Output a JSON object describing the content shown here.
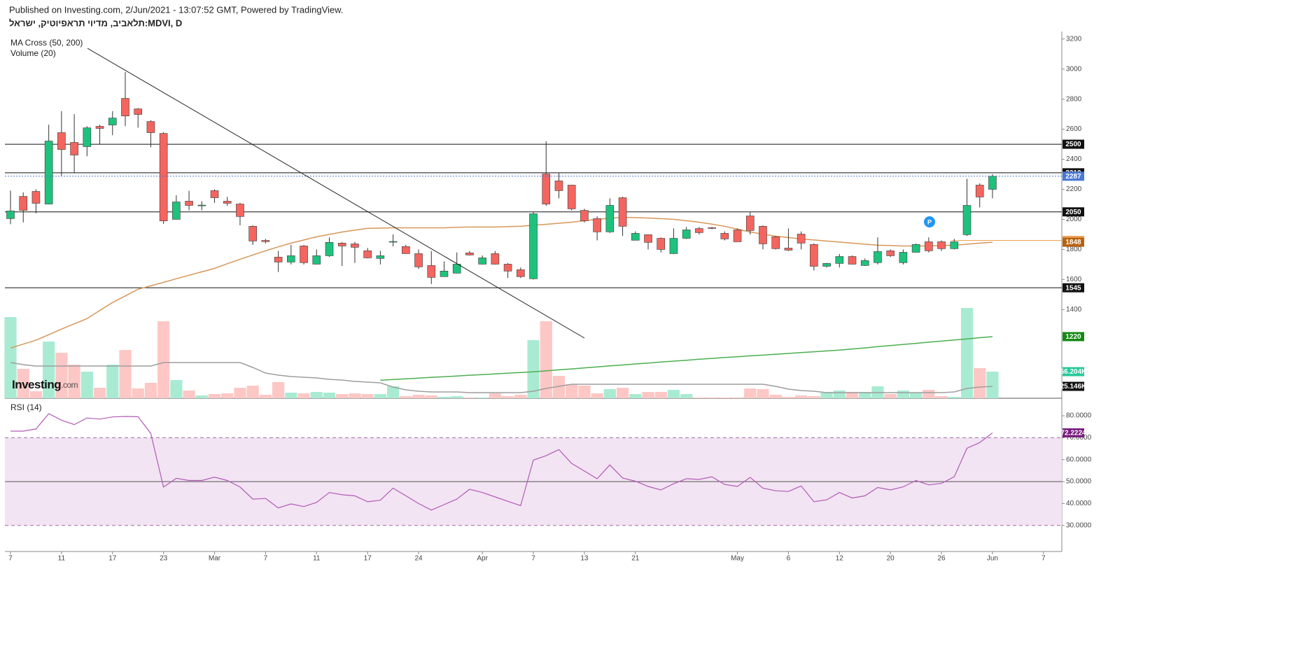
{
  "header": {
    "published": "Published on Investing.com, 2/Jun/2021 - 13:07:52 GMT, Powered by TradingView.",
    "title": "תלאביב, מדיוי תראפיוטיק, ישראל:MDVI, D"
  },
  "logo": {
    "brand": "Investing",
    "suffix": ".com"
  },
  "chart_data": {
    "type": "candlestick",
    "legend": [
      "MA Cross (50, 200)",
      "Volume (20)"
    ],
    "marker_label": "P",
    "categories": [
      "7",
      null,
      null,
      null,
      "11",
      null,
      null,
      null,
      "17",
      null,
      null,
      null,
      "23",
      null,
      null,
      null,
      "Mar",
      null,
      null,
      null,
      "7",
      null,
      null,
      null,
      "11",
      null,
      null,
      null,
      "17",
      null,
      null,
      null,
      "24",
      null,
      null,
      null,
      null,
      "Apr",
      null,
      null,
      null,
      "7",
      null,
      null,
      null,
      "13",
      null,
      null,
      null,
      "21",
      null,
      null,
      null,
      null,
      null,
      null,
      null,
      "May",
      null,
      null,
      null,
      "6",
      null,
      null,
      null,
      "12",
      null,
      null,
      null,
      "20",
      null,
      null,
      null,
      "26",
      null,
      null,
      null,
      "Jun",
      null,
      null,
      null,
      "7"
    ],
    "ohlc": {
      "open": [
        2005,
        2153,
        2186,
        2102,
        2577,
        2512,
        2484,
        2619,
        2628,
        2805,
        2735,
        2651,
        2572,
        2000,
        2121,
        2090,
        2191,
        2121,
        2102,
        1954,
        1860,
        1749,
        1716,
        1823,
        1702,
        1758,
        1842,
        1837,
        1791,
        1740,
        1851,
        1819,
        1772,
        1693,
        1619,
        1642,
        1777,
        1702,
        1772,
        1702,
        1665,
        1605,
        2302,
        2256,
        2228,
        2060,
        2005,
        1917,
        2144,
        1861,
        1898,
        1874,
        1772,
        1874,
        1939,
        1945,
        1907,
        1930,
        2023,
        1954,
        1884,
        1809,
        1902,
        1833,
        1688,
        1707,
        1753,
        1693,
        1712,
        1791,
        1712,
        1781,
        1851,
        1851,
        1805,
        1898,
        2228,
        2200,
        null,
        null,
        null
      ],
      "high": [
        2191,
        2180,
        2200,
        2630,
        2720,
        2700,
        2620,
        2630,
        2720,
        2980,
        2740,
        2660,
        2580,
        2160,
        2190,
        2120,
        2200,
        2150,
        2110,
        1960,
        1870,
        1790,
        1830,
        1830,
        1800,
        1880,
        1850,
        1850,
        1810,
        1790,
        1900,
        1830,
        1800,
        1790,
        1720,
        1780,
        1790,
        1760,
        1790,
        1710,
        1680,
        2050,
        2520,
        2310,
        2230,
        2070,
        2020,
        2140,
        2150,
        1920,
        1900,
        1880,
        1940,
        1950,
        1950,
        1950,
        1920,
        1940,
        2050,
        1960,
        1890,
        1940,
        1920,
        1840,
        1710,
        1770,
        1760,
        1740,
        1880,
        1800,
        1800,
        1840,
        1880,
        1860,
        1870,
        2270,
        2240,
        2300,
        null,
        null,
        null
      ],
      "low": [
        1968,
        1980,
        2040,
        2100,
        2290,
        2310,
        2420,
        2500,
        2560,
        2620,
        2610,
        2480,
        1970,
        2000,
        2060,
        2060,
        2110,
        2090,
        1960,
        1830,
        1840,
        1650,
        1700,
        1700,
        1700,
        1750,
        1690,
        1710,
        1740,
        1700,
        1820,
        1770,
        1670,
        1570,
        1620,
        1640,
        1760,
        1700,
        1700,
        1610,
        1610,
        1600,
        2090,
        2140,
        2060,
        1980,
        1860,
        1910,
        1890,
        1860,
        1800,
        1780,
        1770,
        1870,
        1900,
        1935,
        1860,
        1850,
        1900,
        1800,
        1800,
        1790,
        1800,
        1660,
        1680,
        1680,
        1700,
        1690,
        1700,
        1750,
        1700,
        1780,
        1780,
        1790,
        1800,
        1890,
        2080,
        2140,
        null,
        null,
        null
      ],
      "close": [
        2056,
        2060,
        2107,
        2521,
        2465,
        2428,
        2609,
        2605,
        2674,
        2688,
        2698,
        2577,
        1990,
        2116,
        2093,
        2095,
        2144,
        2107,
        2019,
        1856,
        1852,
        1716,
        1758,
        1712,
        1758,
        1847,
        1823,
        1814,
        1744,
        1758,
        1853,
        1772,
        1684,
        1614,
        1656,
        1702,
        1763,
        1744,
        1702,
        1656,
        1619,
        2037,
        2102,
        2191,
        2070,
        1991,
        1917,
        2093,
        1954,
        1907,
        1847,
        1800,
        1874,
        1930,
        1912,
        1940,
        1870,
        1851,
        1926,
        1837,
        1805,
        1795,
        1842,
        1688,
        1707,
        1753,
        1702,
        1726,
        1786,
        1758,
        1781,
        1833,
        1791,
        1805,
        1851,
        2093,
        2149,
        2287,
        null,
        null,
        null
      ]
    },
    "up_color": "#1ec27c",
    "down_color": "#f4655f",
    "last_price_color": "#4a78d6",
    "moving_averages": [
      {
        "color": "#d6975a",
        "badge_color": "#b8620e",
        "values": [
          1144,
          1170,
          1196,
          1233,
          1270,
          1305,
          1340,
          1394,
          1447,
          1491,
          1535,
          1558,
          1581,
          1605,
          1628,
          1651,
          1674,
          1705,
          1735,
          1763,
          1791,
          1817,
          1842,
          1863,
          1884,
          1900,
          1916,
          1928,
          1940,
          1942,
          1944,
          1944,
          1944,
          1944,
          1944,
          1947,
          1949,
          1949,
          1949,
          1952,
          1954,
          1961,
          1967,
          1974,
          1981,
          1991,
          2000,
          2007,
          2014,
          2012,
          2009,
          2005,
          2000,
          1991,
          1981,
          1968,
          1954,
          1935,
          1916,
          1902,
          1888,
          1879,
          1870,
          1863,
          1856,
          1849,
          1842,
          1835,
          1828,
          1826,
          1823,
          1823,
          1823,
          1826,
          1828,
          1835,
          1842,
          1848,
          null,
          null,
          null
        ]
      },
      {
        "color": "#4caf50",
        "badge_color": "#138a13",
        "values": [
          null,
          null,
          null,
          null,
          null,
          null,
          null,
          null,
          null,
          null,
          null,
          null,
          null,
          null,
          null,
          null,
          null,
          null,
          null,
          null,
          null,
          null,
          null,
          null,
          null,
          null,
          null,
          null,
          null,
          930,
          935,
          939,
          944,
          949,
          953,
          958,
          963,
          967,
          972,
          977,
          981,
          986,
          992,
          999,
          1005,
          1012,
          1018,
          1025,
          1031,
          1038,
          1044,
          1051,
          1057,
          1063,
          1070,
          1075,
          1081,
          1086,
          1092,
          1097,
          1103,
          1108,
          1114,
          1119,
          1125,
          1130,
          1138,
          1145,
          1153,
          1160,
          1168,
          1175,
          1183,
          1190,
          1198,
          1205,
          1213,
          1220,
          null,
          null,
          null
        ]
      }
    ],
    "volume": {
      "up_color": "#a9ebd2",
      "down_color": "#fdc7c5",
      "badge_color": "#26c99a",
      "values": [
        171680,
        62160,
        14800,
        119880,
        96200,
        71040,
        56240,
        22200,
        71040,
        102120,
        20720,
        32560,
        162800,
        38480,
        16280,
        5920,
        8880,
        10360,
        22200,
        26640,
        7400,
        34040,
        11840,
        10360,
        13320,
        11840,
        8880,
        10360,
        8880,
        8880,
        25160,
        4440,
        7400,
        5920,
        2960,
        4440,
        1480,
        1480,
        10360,
        4440,
        7400,
        122840,
        162800,
        47360,
        29600,
        26640,
        10360,
        19240,
        22200,
        8880,
        13320,
        13320,
        17760,
        8880,
        1480,
        1480,
        1480,
        1480,
        20720,
        19240,
        7400,
        2960,
        5920,
        4440,
        13320,
        16280,
        13320,
        13320,
        25160,
        8880,
        16280,
        11840,
        17760,
        4440,
        2960,
        190920,
        63640,
        56204,
        null,
        null,
        null
      ],
      "value_labels": [
        null,
        null,
        null,
        null,
        null,
        null,
        null,
        null,
        null,
        null,
        null,
        null,
        null,
        null,
        null,
        null,
        null,
        null,
        null,
        null,
        null,
        null,
        null,
        null,
        null,
        null,
        null,
        null,
        null,
        null,
        null,
        null,
        null,
        null,
        null,
        null,
        null,
        null,
        null,
        null,
        null,
        null,
        null,
        null,
        null,
        null,
        null,
        null,
        null,
        null,
        null,
        null,
        null,
        null,
        null,
        null,
        null,
        null,
        null,
        null,
        null,
        null,
        null,
        null,
        null,
        null,
        null,
        null,
        null,
        null,
        null,
        null,
        null,
        null,
        null,
        null,
        null,
        "56.204K",
        null,
        null,
        null
      ],
      "average": {
        "color": "#9e9e9e",
        "badge_color": "#111111",
        "values": [
          75480,
          71040,
          68080,
          68080,
          68080,
          68080,
          68080,
          68080,
          68080,
          68080,
          68080,
          68080,
          75480,
          75480,
          75480,
          75480,
          75480,
          75480,
          75480,
          65120,
          53280,
          48840,
          45880,
          44400,
          42920,
          39960,
          38480,
          35520,
          34040,
          32560,
          23680,
          17760,
          14800,
          13320,
          13320,
          13320,
          11840,
          11840,
          11840,
          11840,
          11840,
          14800,
          20720,
          25160,
          29600,
          29600,
          29600,
          29600,
          29600,
          29600,
          29600,
          29600,
          29600,
          29600,
          29600,
          29600,
          29600,
          29600,
          29600,
          29600,
          25160,
          19240,
          16280,
          14800,
          11840,
          11840,
          11840,
          11840,
          11840,
          11840,
          11840,
          11840,
          11840,
          11840,
          13320,
          20720,
          23680,
          25146,
          null,
          null,
          null
        ],
        "value_labels": [
          null,
          null,
          null,
          null,
          null,
          null,
          null,
          null,
          null,
          null,
          null,
          null,
          null,
          null,
          null,
          null,
          null,
          null,
          null,
          null,
          null,
          null,
          null,
          null,
          null,
          null,
          null,
          null,
          null,
          null,
          null,
          null,
          null,
          null,
          null,
          null,
          null,
          null,
          null,
          null,
          null,
          null,
          null,
          null,
          null,
          null,
          null,
          null,
          null,
          null,
          null,
          null,
          null,
          null,
          null,
          null,
          null,
          null,
          null,
          null,
          null,
          null,
          null,
          null,
          null,
          null,
          null,
          null,
          null,
          null,
          null,
          null,
          null,
          null,
          null,
          null,
          null,
          "25.146K",
          null,
          null,
          null
        ]
      }
    },
    "horizontal_lines": [
      {
        "value": 2500,
        "color": "#111111"
      },
      {
        "value": 2310,
        "color": "#111111"
      },
      {
        "value": 2050,
        "color": "#111111"
      },
      {
        "value": 1545,
        "color": "#111111"
      },
      {
        "value": 1860,
        "color": "#f0a257",
        "anchor": 74
      }
    ],
    "ylim": [
      810,
      3250
    ],
    "yticks": [
      1400,
      1600,
      1800,
      2000,
      2200,
      2400,
      2600,
      2800,
      3000,
      3200
    ],
    "rsi": {
      "legend": "RSI (14)",
      "color": "#b25ab8",
      "badge_color": "#7a1d7e",
      "band_color": "#f2e4f2",
      "values": [
        73,
        73,
        74,
        81,
        78,
        76,
        79,
        78.5,
        79.5,
        79.7,
        79.6,
        72,
        47.5,
        51.5,
        50.5,
        50.5,
        52,
        50.5,
        47.5,
        42,
        42.3,
        38,
        39.8,
        38.6,
        40.5,
        45,
        44,
        43.5,
        40.8,
        41.5,
        47,
        43.5,
        40,
        37,
        39.5,
        42,
        46.5,
        45,
        43,
        41,
        39,
        59.8,
        61.8,
        64.6,
        58.3,
        54.8,
        51.3,
        57.6,
        51.6,
        50.2,
        47.8,
        46.2,
        49,
        51.3,
        51,
        52.2,
        48.7,
        47.8,
        51.9,
        47,
        45.8,
        45.5,
        48,
        40.8,
        41.7,
        45,
        42.5,
        43.5,
        47.3,
        46.2,
        47.6,
        50.5,
        48.5,
        49.2,
        52.2,
        65.2,
        67.8,
        72.2224,
        null,
        null,
        null
      ],
      "band": [
        30,
        70
      ],
      "midline": 50,
      "ylim": [
        19.7,
        86.1
      ],
      "yticks": [
        {
          "value": 30,
          "label": "30.0000"
        },
        {
          "value": 40,
          "label": "40.0000"
        },
        {
          "value": 50,
          "label": "50.0000"
        },
        {
          "value": 60,
          "label": "60.0000"
        },
        {
          "value": 70,
          "label": "70.0000"
        },
        {
          "value": 80,
          "label": "80.0000"
        }
      ]
    }
  }
}
